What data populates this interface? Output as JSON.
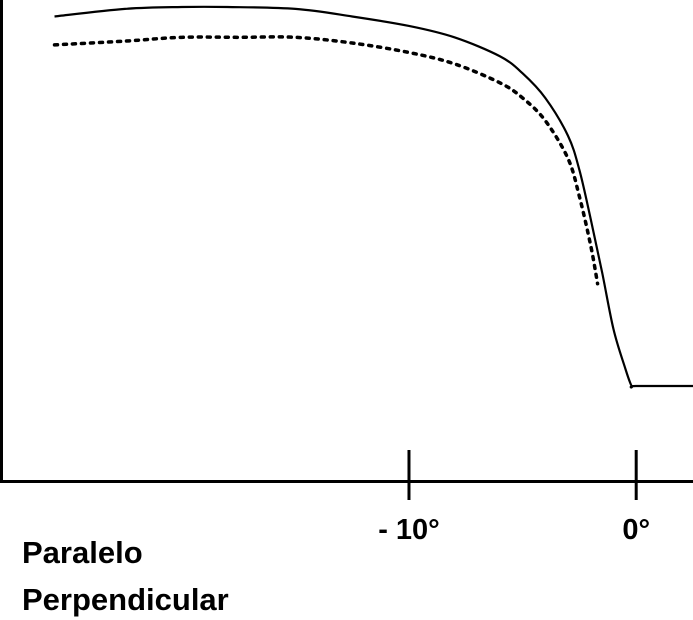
{
  "chart_data": {
    "type": "line",
    "title": "",
    "xlabel": "",
    "ylabel": "",
    "xlim": [
      -28,
      2.5
    ],
    "ylim": [
      0,
      1.06
    ],
    "x_ticks": [
      {
        "value": -10,
        "label": "- 10°"
      },
      {
        "value": 0,
        "label": "0°"
      }
    ],
    "grid": false,
    "legend_position": "bottom-left",
    "series": [
      {
        "name": "Paralelo",
        "style": "solid",
        "color": "#000000",
        "points": [
          [
            -25.6,
            0.975
          ],
          [
            -22.5,
            0.995
          ],
          [
            -20,
            1.0
          ],
          [
            -18,
            1.0
          ],
          [
            -15,
            0.995
          ],
          [
            -12.5,
            0.975
          ],
          [
            -10,
            0.95
          ],
          [
            -8,
            0.92
          ],
          [
            -6,
            0.87
          ],
          [
            -5,
            0.825
          ],
          [
            -4,
            0.76
          ],
          [
            -3,
            0.66
          ],
          [
            -2.5,
            0.57
          ],
          [
            -2,
            0.44
          ],
          [
            -1.5,
            0.3
          ],
          [
            -1,
            0.15
          ],
          [
            -0.5,
            0.05
          ],
          [
            -0.2,
            0.0
          ],
          [
            0,
            0.0
          ],
          [
            2.5,
            0.0
          ]
        ]
      },
      {
        "name": "Perpendicular",
        "style": "dotted",
        "color": "#000000",
        "points": [
          [
            -25.6,
            0.9
          ],
          [
            -22.5,
            0.91
          ],
          [
            -20,
            0.92
          ],
          [
            -17.5,
            0.92
          ],
          [
            -15,
            0.92
          ],
          [
            -12.5,
            0.905
          ],
          [
            -10,
            0.88
          ],
          [
            -8,
            0.85
          ],
          [
            -6,
            0.8
          ],
          [
            -5,
            0.76
          ],
          [
            -4,
            0.7
          ],
          [
            -3,
            0.6
          ],
          [
            -2.5,
            0.5
          ],
          [
            -2,
            0.37
          ],
          [
            -1.7,
            0.27
          ]
        ]
      }
    ]
  }
}
